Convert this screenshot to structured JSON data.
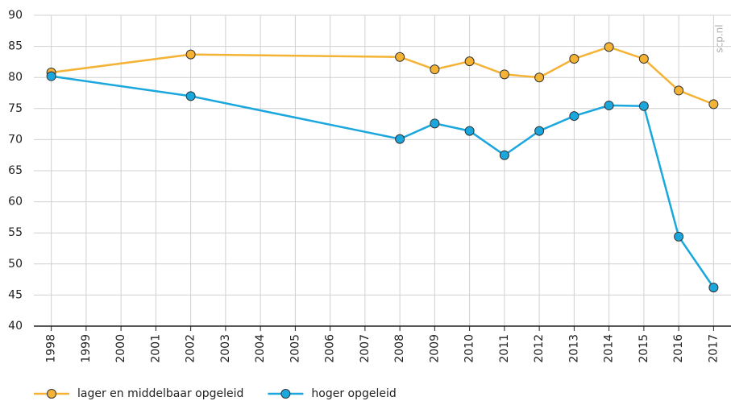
{
  "chart_data": {
    "type": "line",
    "watermark": "scp.nl",
    "x": [
      1998,
      2002,
      2008,
      2009,
      2010,
      2011,
      2012,
      2013,
      2014,
      2015,
      2016,
      2017
    ],
    "series": [
      {
        "name": "lager en middelbaar opgeleid",
        "color": "#f5b335",
        "values": [
          80.8,
          83.7,
          83.3,
          81.3,
          82.6,
          80.5,
          80.0,
          83.0,
          84.9,
          83.0,
          77.9,
          75.7
        ]
      },
      {
        "name": "hoger opgeleid",
        "color": "#1aa7dd",
        "values": [
          80.2,
          77.0,
          70.1,
          72.6,
          71.4,
          67.5,
          71.4,
          73.8,
          75.5,
          75.4,
          54.4,
          46.2
        ]
      }
    ],
    "xlim": [
      1997.5,
      2017.5
    ],
    "xticks": [
      1998,
      1999,
      2000,
      2001,
      2002,
      2003,
      2004,
      2005,
      2006,
      2007,
      2008,
      2009,
      2010,
      2011,
      2012,
      2013,
      2014,
      2015,
      2016,
      2017
    ],
    "ylim": [
      40,
      90
    ],
    "yticks": [
      40,
      45,
      50,
      55,
      60,
      65,
      70,
      75,
      80,
      85,
      90
    ],
    "grid": true
  }
}
